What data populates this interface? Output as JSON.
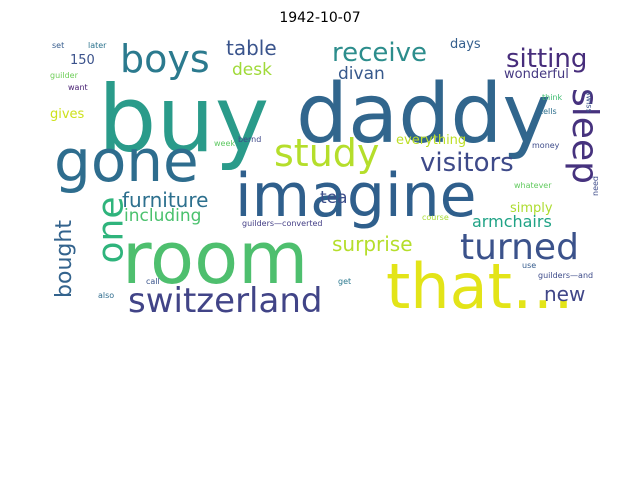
{
  "title": "1942-10-07",
  "words": [
    {
      "text": "buy",
      "color": "#2a9b8a"
    },
    {
      "text": "daddy",
      "color": "#31668d"
    },
    {
      "text": "room",
      "color": "#4ebf6e"
    },
    {
      "text": "imagine",
      "color": "#2f5f8c"
    },
    {
      "text": "gone",
      "color": "#2e6d8e"
    },
    {
      "text": "that…",
      "color": "#e3e418"
    },
    {
      "text": "switzerland",
      "color": "#414487"
    },
    {
      "text": "boys",
      "color": "#2b7a8e"
    },
    {
      "text": "study",
      "color": "#b5de2b"
    },
    {
      "text": "turned",
      "color": "#3b528b"
    },
    {
      "text": "sleep",
      "color": "#46327e"
    },
    {
      "text": "visitors",
      "color": "#3e4a89"
    },
    {
      "text": "receive",
      "color": "#2c8d8c"
    },
    {
      "text": "sitting",
      "color": "#472d7b"
    },
    {
      "text": "one",
      "color": "#2fb47c"
    },
    {
      "text": "furniture",
      "color": "#2d708e"
    },
    {
      "text": "surprise",
      "color": "#b5de2b"
    },
    {
      "text": "bought",
      "color": "#33638d"
    },
    {
      "text": "table",
      "color": "#3a548c"
    },
    {
      "text": "including",
      "color": "#4ac16d"
    },
    {
      "text": "armchairs",
      "color": "#20a386"
    },
    {
      "text": "new",
      "color": "#404688"
    },
    {
      "text": "desk",
      "color": "#a0da39"
    },
    {
      "text": "divan",
      "color": "#38598c"
    },
    {
      "text": "tea",
      "color": "#3d4e8a"
    },
    {
      "text": "wonderful",
      "color": "#453882"
    },
    {
      "text": "everything",
      "color": "#bddf26"
    },
    {
      "text": "simply",
      "color": "#addc30"
    },
    {
      "text": "days",
      "color": "#355f8d"
    },
    {
      "text": "150",
      "color": "#3b528b"
    },
    {
      "text": "gives",
      "color": "#cde11d"
    },
    {
      "text": "guilder",
      "color": "#6ece58"
    },
    {
      "text": "set",
      "color": "#365c8d"
    },
    {
      "text": "later",
      "color": "#2c738e"
    },
    {
      "text": "want",
      "color": "#482173"
    },
    {
      "text": "think",
      "color": "#40bd72"
    },
    {
      "text": "swiss",
      "color": "#3b528b"
    },
    {
      "text": "tells",
      "color": "#2d708e"
    },
    {
      "text": "week",
      "color": "#5ec962"
    },
    {
      "text": "bernd",
      "color": "#3e4989"
    },
    {
      "text": "money",
      "color": "#3e4c8a"
    },
    {
      "text": "need",
      "color": "#3e4c8a"
    },
    {
      "text": "whatever",
      "color": "#62cb5f"
    },
    {
      "text": "guilders—converted",
      "color": "#433e85"
    },
    {
      "text": "course",
      "color": "#a8db34"
    },
    {
      "text": "use",
      "color": "#365c8d"
    },
    {
      "text": "guilders—and",
      "color": "#3e4c8a"
    },
    {
      "text": "call",
      "color": "#3a548c"
    },
    {
      "text": "get",
      "color": "#2a788e"
    },
    {
      "text": "also",
      "color": "#2f6c8e"
    }
  ]
}
